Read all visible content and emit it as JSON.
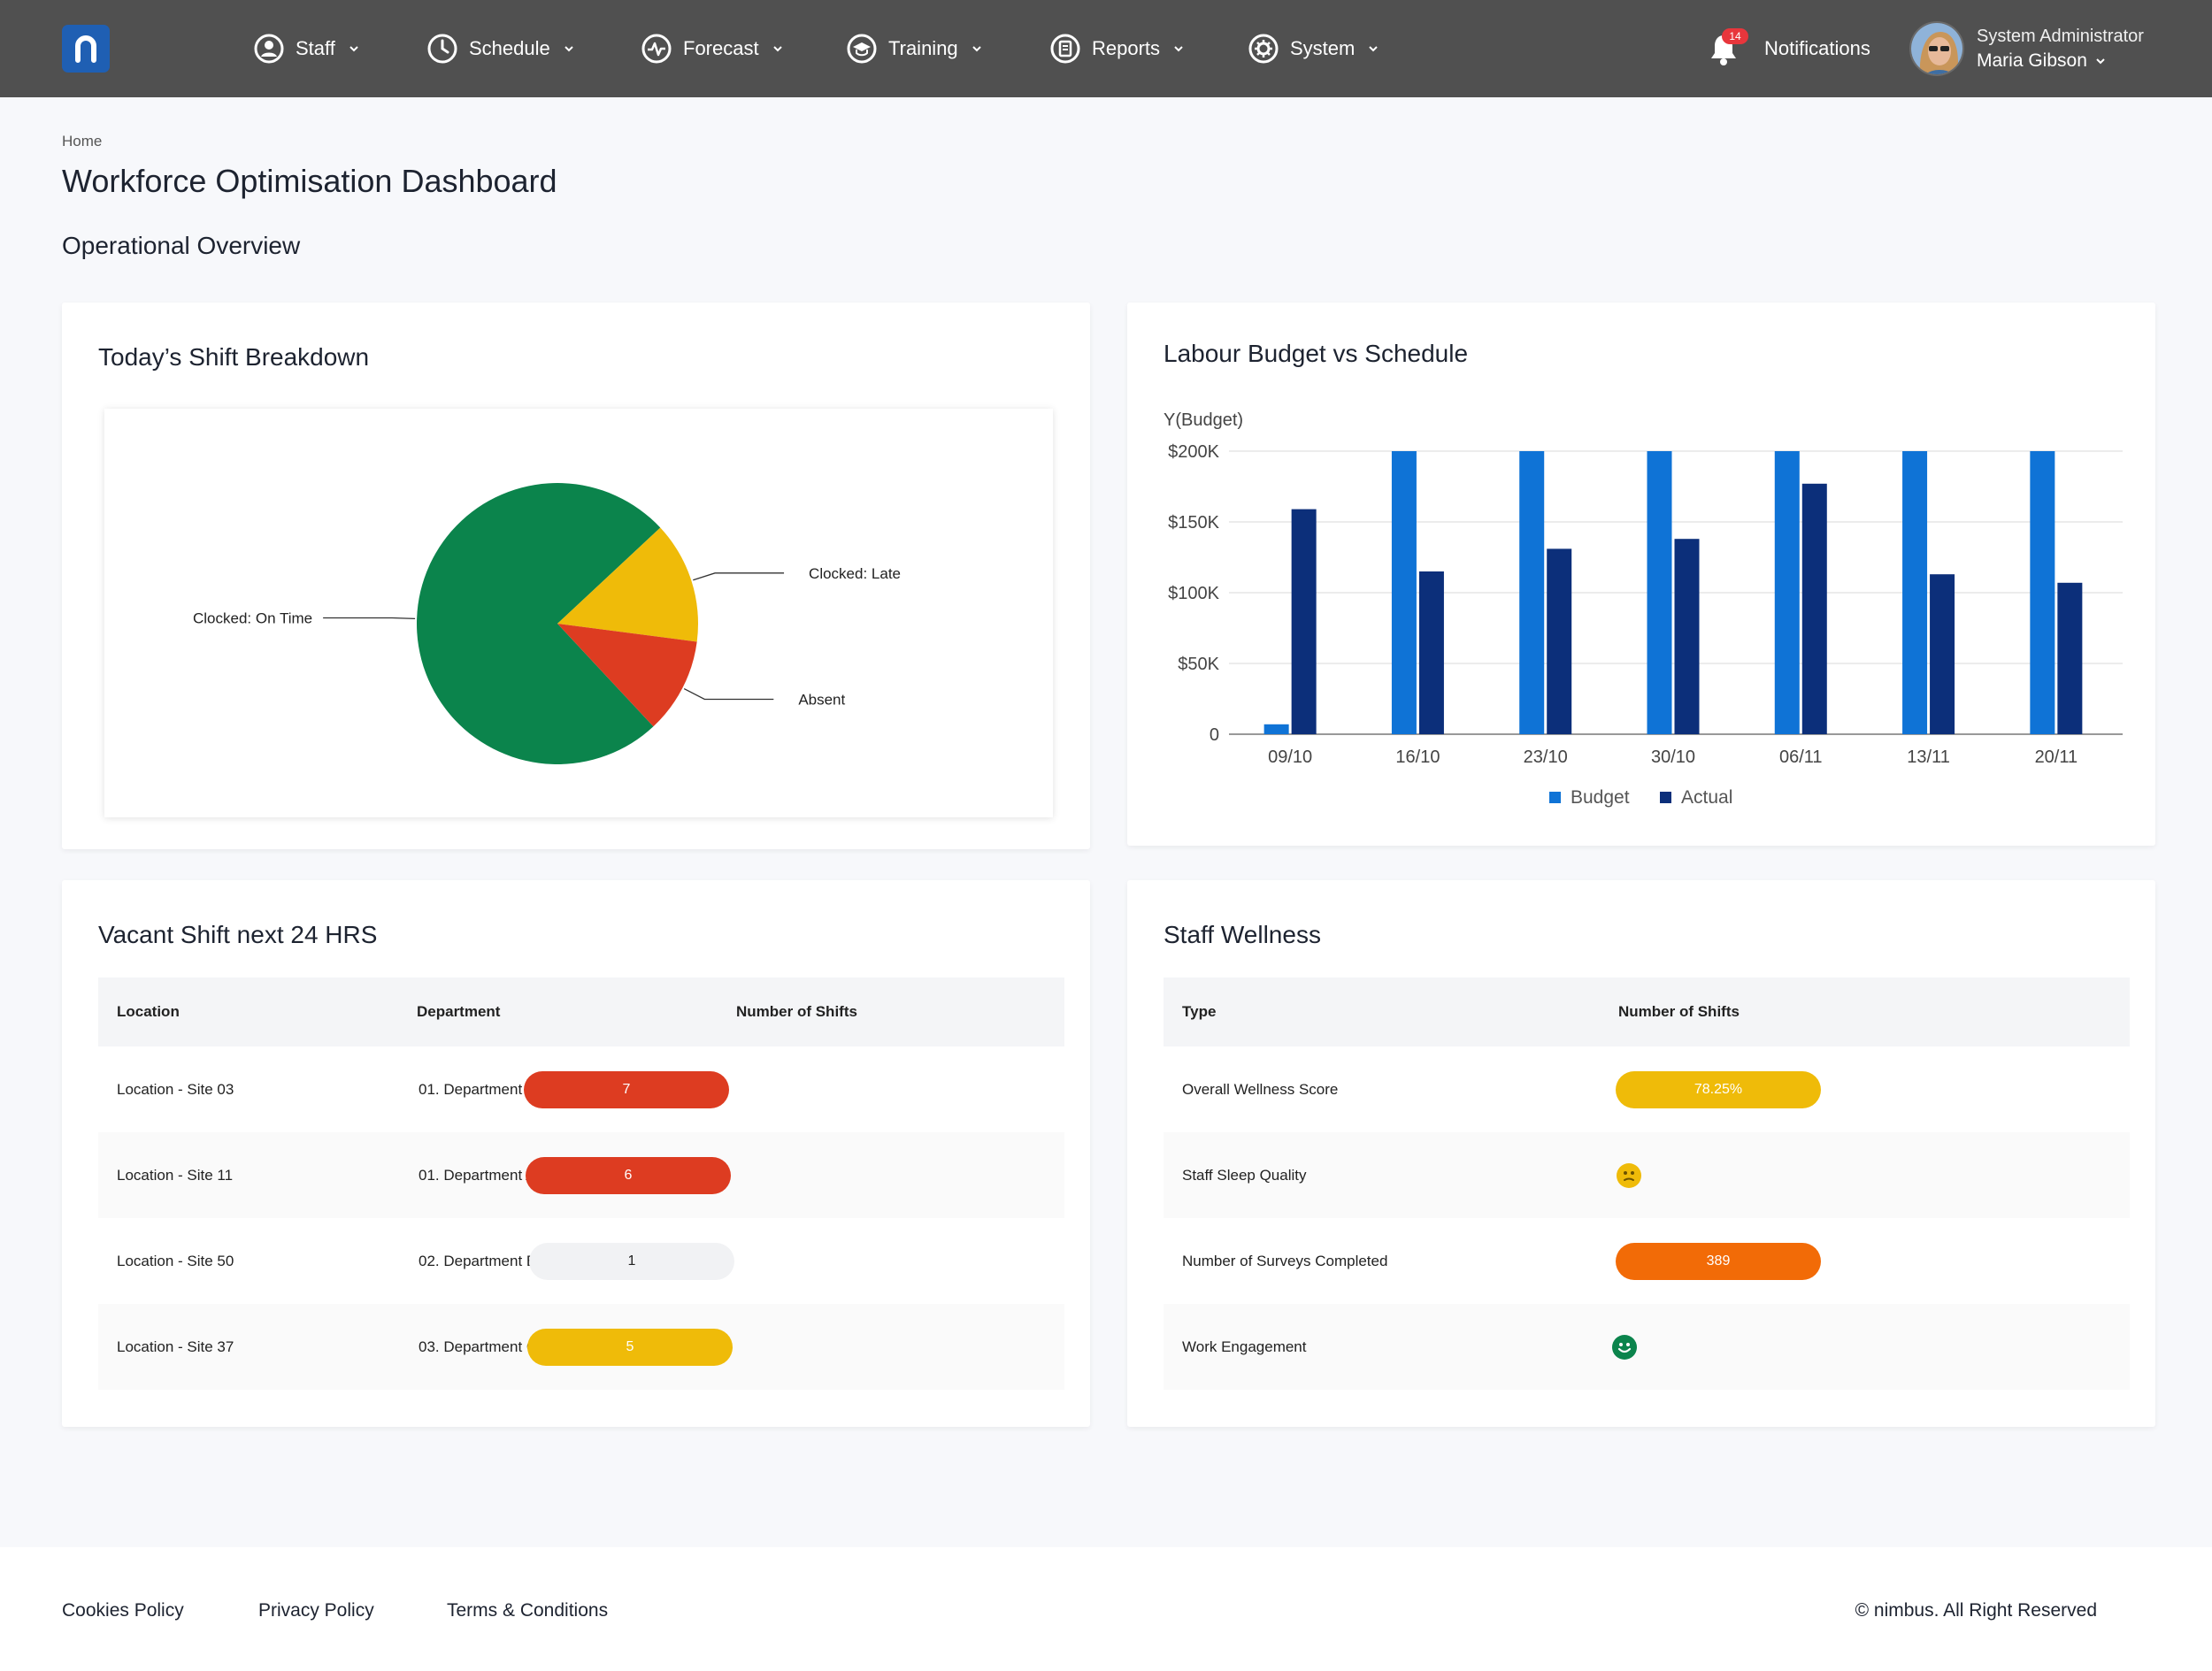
{
  "header": {
    "nav": [
      {
        "label": "Staff",
        "icon": "user-circle-icon"
      },
      {
        "label": "Schedule",
        "icon": "clock-icon"
      },
      {
        "label": "Forecast",
        "icon": "pulse-icon"
      },
      {
        "label": "Training",
        "icon": "graduation-cap-icon"
      },
      {
        "label": "Reports",
        "icon": "clipboard-icon"
      },
      {
        "label": "System",
        "icon": "gear-icon"
      }
    ],
    "notifications": {
      "label": "Notifications",
      "count": "14"
    },
    "user": {
      "role": "System Administrator",
      "name": "Maria Gibson"
    }
  },
  "breadcrumb": "Home",
  "page_title": "Workforce Optimisation Dashboard",
  "section_title": "Operational Overview",
  "shift_breakdown": {
    "title": "Today’s Shift Breakdown"
  },
  "budget_chart": {
    "title": "Labour Budget vs Schedule"
  },
  "vacant_shifts": {
    "title": "Vacant Shift next 24 HRS",
    "columns": [
      "Location",
      "Department",
      "Number of Shifts"
    ],
    "rows": [
      {
        "location": "Location - Site 03",
        "department": "01. Department A",
        "shifts": "7",
        "status": "red"
      },
      {
        "location": "Location - Site 11",
        "department": "01. Department A",
        "shifts": "6",
        "status": "red"
      },
      {
        "location": "Location - Site 50",
        "department": "02. Department B",
        "shifts": "1",
        "status": "grey"
      },
      {
        "location": "Location - Site 37",
        "department": "03. Department C",
        "shifts": "5",
        "status": "yellow"
      }
    ]
  },
  "wellness": {
    "title": "Staff Wellness",
    "columns": [
      "Type",
      "Number of Shifts"
    ],
    "rows": [
      {
        "type": "Overall Wellness Score",
        "value": "78.25%",
        "kind": "pill",
        "status": "yellow"
      },
      {
        "type": "Staff Sleep Quality",
        "value": "",
        "kind": "face-neutral",
        "status": "yellow"
      },
      {
        "type": "Number of Surveys Completed",
        "value": "389",
        "kind": "pill",
        "status": "orange"
      },
      {
        "type": "Work Engagement",
        "value": "",
        "kind": "face-happy",
        "status": "green"
      }
    ]
  },
  "footer": {
    "links": [
      "Cookies Policy",
      "Privacy Policy",
      "Terms & Conditions"
    ],
    "copyright": "© nimbus. All Right Reserved"
  },
  "colors": {
    "topbar": "#505050",
    "logo": "#1f5fb3",
    "red": "#dd3c21",
    "yellow": "#efbb09",
    "orange": "#f26b07",
    "green": "#0b844c",
    "grey_pill": "#f1f2f4",
    "budget": "#0f73d6",
    "actual": "#0c2f7a"
  },
  "chart_data": [
    {
      "type": "pie",
      "title": "Today’s Shift Breakdown",
      "labels": [
        "Clocked: On Time",
        "Clocked: Late",
        "Absent"
      ],
      "values": [
        75,
        14,
        11
      ],
      "colors": [
        "#0b844c",
        "#efbb09",
        "#dd3c21"
      ]
    },
    {
      "type": "bar",
      "title": "Labour Budget vs Schedule",
      "ylabel": "Y(Budget)",
      "categories": [
        "09/10",
        "16/10",
        "23/10",
        "30/10",
        "06/11",
        "13/11",
        "20/11"
      ],
      "yticks": [
        "0",
        "$50K",
        "$100K",
        "$150K",
        "$200K"
      ],
      "ylim": [
        0,
        200000
      ],
      "series": [
        {
          "name": "Budget",
          "color": "#0f73d6",
          "values": [
            7000,
            200000,
            200000,
            200000,
            200000,
            200000,
            200000
          ]
        },
        {
          "name": "Actual",
          "color": "#0c2f7a",
          "values": [
            159000,
            115000,
            131000,
            138000,
            177000,
            113000,
            107000
          ]
        }
      ],
      "legend": "bottom"
    }
  ]
}
